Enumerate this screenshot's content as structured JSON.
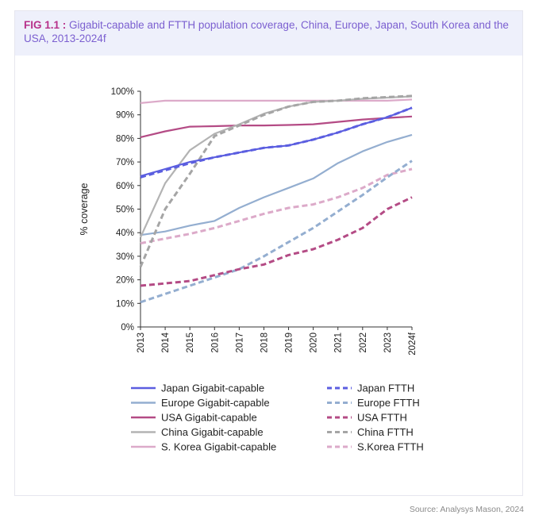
{
  "figure": {
    "label": "FIG 1.1 :",
    "title": "Gigabit-capable and FTTH population coverage, China, Europe, Japan, South Korea and the USA, 2013-2024f"
  },
  "source": "Source: Analysys Mason, 2024",
  "chart_data": {
    "type": "line",
    "title": "",
    "xlabel": "",
    "ylabel": "% coverage",
    "x": [
      "2013",
      "2014",
      "2015",
      "2016",
      "2017",
      "2018",
      "2019",
      "2020",
      "2021",
      "2022",
      "2023",
      "2024f"
    ],
    "ylim": [
      0,
      100
    ],
    "yticks": [
      0,
      10,
      20,
      30,
      40,
      50,
      60,
      70,
      80,
      90,
      100
    ],
    "ytick_labels": [
      "0%",
      "10%",
      "20%",
      "30%",
      "40%",
      "50%",
      "60%",
      "70%",
      "80%",
      "90%",
      "100%"
    ],
    "grid": false,
    "legend_position": "bottom",
    "series": [
      {
        "name": "Japan Gigabit-capable",
        "color": "#5b5ee0",
        "dashed": false,
        "values": [
          64,
          67,
          70,
          72,
          74,
          76,
          77,
          79.5,
          82.5,
          86,
          89,
          93
        ]
      },
      {
        "name": "Japan FTTH",
        "color": "#5b5ee0",
        "dashed": true,
        "values": [
          63.5,
          66.5,
          69.5,
          72,
          74,
          76,
          77,
          79.5,
          82.5,
          86,
          89,
          93
        ]
      },
      {
        "name": "Europe Gigabit-capable",
        "color": "#94aed0",
        "dashed": false,
        "values": [
          39,
          40.5,
          43,
          45,
          50.5,
          55,
          59,
          63,
          69.5,
          74.5,
          78.5,
          81.5
        ]
      },
      {
        "name": "Europe FTTH",
        "color": "#94aed0",
        "dashed": true,
        "values": [
          10.5,
          14,
          17.5,
          21,
          24.5,
          30,
          36,
          42,
          49,
          56,
          63.5,
          70.5
        ]
      },
      {
        "name": "USA Gigabit-capable",
        "color": "#b44b85",
        "dashed": false,
        "values": [
          80.5,
          83,
          85,
          85.2,
          85.5,
          85.5,
          85.7,
          86,
          87,
          88,
          88.7,
          89.3
        ]
      },
      {
        "name": "USA FTTH",
        "color": "#b44b85",
        "dashed": true,
        "values": [
          17.5,
          18.5,
          19.5,
          22,
          24.5,
          26.5,
          30.5,
          33,
          37,
          42,
          50,
          55
        ]
      },
      {
        "name": "China Gigabit-capable",
        "color": "#b3b3b3",
        "dashed": false,
        "values": [
          38,
          61,
          75,
          82,
          86,
          90.5,
          93.5,
          95.5,
          96,
          96.8,
          97.3,
          97.8
        ]
      },
      {
        "name": "China FTTH",
        "color": "#a5a5a5",
        "dashed": true,
        "values": [
          25.5,
          50,
          65,
          81,
          85.5,
          90,
          93.5,
          95.5,
          96,
          97,
          97.5,
          98
        ]
      },
      {
        "name": "S. Korea Gigabit-capable",
        "color": "#dcaac9",
        "dashed": false,
        "values": [
          95,
          96,
          96,
          96,
          96,
          96,
          96,
          96,
          96,
          96,
          96,
          96.5
        ]
      },
      {
        "name": "S.Korea FTTH",
        "color": "#dcaac9",
        "dashed": true,
        "values": [
          35.5,
          37.5,
          39.5,
          42,
          45,
          48,
          50.5,
          52,
          55,
          59,
          64.5,
          67
        ]
      }
    ],
    "legend": {
      "left": [
        "Japan Gigabit-capable",
        "Europe Gigabit-capable",
        "USA Gigabit-capable",
        "China Gigabit-capable",
        "S. Korea Gigabit-capable"
      ],
      "right": [
        "Japan FTTH",
        "Europe FTTH",
        "USA FTTH",
        "China FTTH",
        "S.Korea FTTH"
      ]
    }
  }
}
